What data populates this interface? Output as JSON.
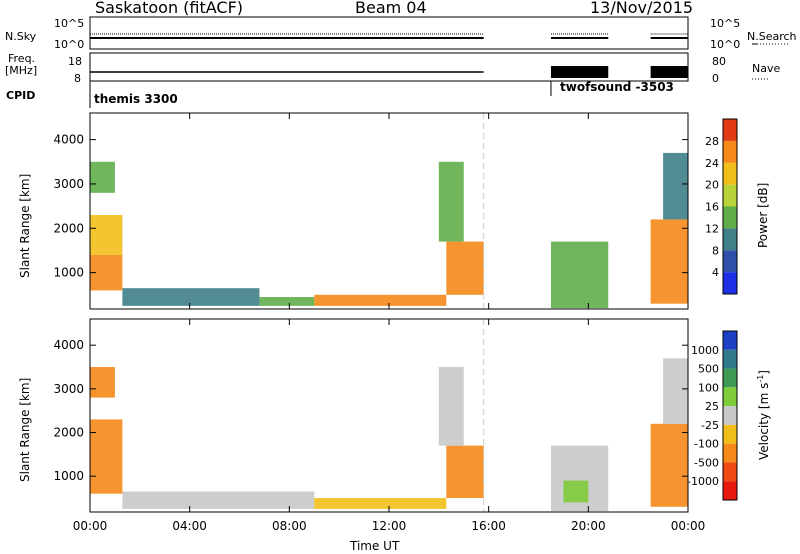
{
  "header": {
    "station": "Saskatoon (fitACF)",
    "beam": "Beam 04",
    "date": "13/Nov/2015"
  },
  "ancillary": {
    "nsky_label": "N.Sky",
    "nsky_ticks": [
      "10^5",
      "10^0"
    ],
    "nsearch_label": "N.Search",
    "nsearch_ticks": [
      "10^5",
      "10^0"
    ],
    "freq_label": "Freq.",
    "freq_unit": "[MHz]",
    "freq_ticks": [
      "18",
      "8"
    ],
    "nave_label": "Nave",
    "nave_ticks": [
      "80",
      "0"
    ],
    "cpid_label": "CPID",
    "programs": [
      {
        "name": "themis 3300",
        "start_hour": 0.0
      },
      {
        "name": "twofsound -3503",
        "start_hour": 18.5
      }
    ]
  },
  "chart_data": [
    {
      "type": "heatmap",
      "title": "",
      "xlabel": "Time UT",
      "ylabel": "Slant Range [km]",
      "xlim": [
        0,
        24
      ],
      "ylim": [
        180,
        4600
      ],
      "x_ticks": [
        "00:00",
        "04:00",
        "08:00",
        "12:00",
        "16:00",
        "20:00",
        "00:00"
      ],
      "y_ticks": [
        "1000",
        "2000",
        "3000",
        "4000"
      ],
      "colorbar": {
        "label": "Power [dB]",
        "ticks": [
          "4",
          "8",
          "12",
          "16",
          "20",
          "24",
          "28"
        ],
        "colors": [
          "#1f2fe6",
          "#2f4fa8",
          "#3e7f88",
          "#5fae4a",
          "#b8d23a",
          "#f2bf1a",
          "#f58a1a",
          "#e23a15"
        ]
      },
      "series": [
        {
          "t0": 0.0,
          "t1": 1.3,
          "r0": 600,
          "r1": 1400,
          "value": 26
        },
        {
          "t0": 0.0,
          "t1": 1.3,
          "r0": 1400,
          "r1": 2300,
          "value": 22
        },
        {
          "t0": 0.0,
          "t1": 1.0,
          "r0": 2800,
          "r1": 3500,
          "value": 14
        },
        {
          "t0": 1.3,
          "t1": 6.8,
          "r0": 250,
          "r1": 650,
          "value": 10
        },
        {
          "t0": 6.8,
          "t1": 9.0,
          "r0": 250,
          "r1": 450,
          "value": 12
        },
        {
          "t0": 9.0,
          "t1": 14.3,
          "r0": 250,
          "r1": 500,
          "value": 24
        },
        {
          "t0": 14.3,
          "t1": 15.8,
          "r0": 500,
          "r1": 1700,
          "value": 24
        },
        {
          "t0": 14.0,
          "t1": 15.0,
          "r0": 1700,
          "r1": 3500,
          "value": 12
        },
        {
          "t0": 18.5,
          "t1": 20.8,
          "r0": 200,
          "r1": 1700,
          "value": 12
        },
        {
          "t0": 22.5,
          "t1": 24.0,
          "r0": 300,
          "r1": 2200,
          "value": 24
        },
        {
          "t0": 23.0,
          "t1": 24.0,
          "r0": 2200,
          "r1": 3700,
          "value": 10
        }
      ]
    },
    {
      "type": "heatmap",
      "title": "",
      "xlabel": "Time UT",
      "ylabel": "Slant Range [km]",
      "xlim": [
        0,
        24
      ],
      "ylim": [
        180,
        4600
      ],
      "x_ticks": [
        "00:00",
        "04:00",
        "08:00",
        "12:00",
        "16:00",
        "20:00",
        "00:00"
      ],
      "y_ticks": [
        "1000",
        "2000",
        "3000",
        "4000"
      ],
      "colorbar": {
        "label": "Velocity [m s^-1]",
        "ticks": [
          "1000",
          "500",
          "100",
          "25",
          "-25",
          "-100",
          "-500",
          "-1000"
        ],
        "colors": [
          "#1d3fc4",
          "#2f7a8c",
          "#3f9a55",
          "#7fcc3a",
          "#c8c8c8",
          "#f2bf1a",
          "#f58a1a",
          "#f04a14",
          "#e81a10"
        ]
      },
      "series": [
        {
          "t0": 0.0,
          "t1": 1.3,
          "r0": 600,
          "r1": 2300,
          "value": -300
        },
        {
          "t0": 0.0,
          "t1": 1.0,
          "r0": 2800,
          "r1": 3500,
          "value": -150
        },
        {
          "t0": 1.3,
          "t1": 9.0,
          "r0": 250,
          "r1": 650,
          "value": 0
        },
        {
          "t0": 9.0,
          "t1": 14.3,
          "r0": 250,
          "r1": 500,
          "value": -80
        },
        {
          "t0": 14.3,
          "t1": 15.8,
          "r0": 500,
          "r1": 1700,
          "value": -300
        },
        {
          "t0": 14.0,
          "t1": 15.0,
          "r0": 1700,
          "r1": 3500,
          "value": 0
        },
        {
          "t0": 18.5,
          "t1": 20.8,
          "r0": 200,
          "r1": 1700,
          "value": 0
        },
        {
          "t0": 19.0,
          "t1": 20.0,
          "r0": 400,
          "r1": 900,
          "value": 60
        },
        {
          "t0": 22.5,
          "t1": 24.0,
          "r0": 300,
          "r1": 2200,
          "value": -200
        },
        {
          "t0": 23.0,
          "t1": 24.0,
          "r0": 2200,
          "r1": 3700,
          "value": 0
        }
      ]
    }
  ]
}
